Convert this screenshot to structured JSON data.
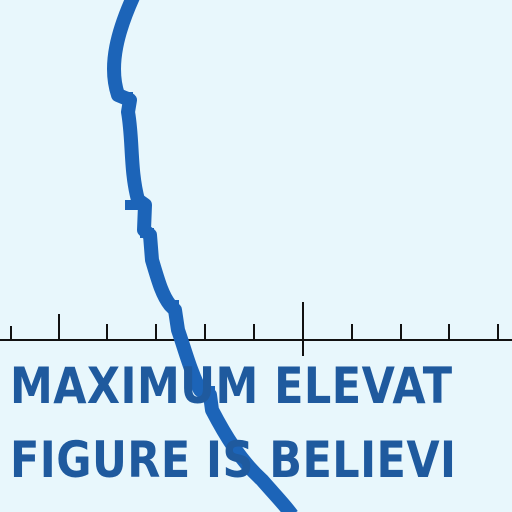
{
  "map": {
    "background_color": "#e8f7fc",
    "route_color": "#1c64b8",
    "scale_bar_color": "#111111",
    "label_color": "#1f5a9e",
    "label_lines": [
      "MAXIMUM ELEVAT",
      "FIGURE IS BELIEVI"
    ]
  }
}
